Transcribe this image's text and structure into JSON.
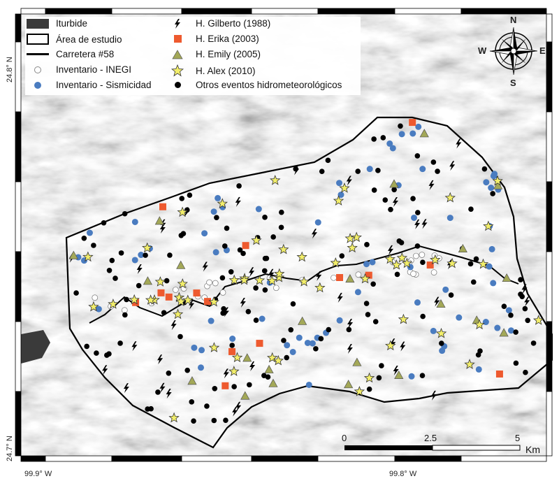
{
  "legend": {
    "items": [
      {
        "label": "Iturbide",
        "symbol": "dark-fill",
        "color": "#3a3a3a"
      },
      {
        "label": "Área de estudio",
        "symbol": "outline-box"
      },
      {
        "label": "Carretera #58",
        "symbol": "line"
      },
      {
        "label": "Inventario - INEGI",
        "symbol": "white-circle",
        "color": "#ffffff"
      },
      {
        "label": "Inventario - Sismicidad",
        "symbol": "blue-circle",
        "color": "#4a7cc0"
      },
      {
        "label": "H. Gilberto (1988)",
        "symbol": "lightning",
        "color": "#000000"
      },
      {
        "label": "H. Erika (2003)",
        "symbol": "square",
        "color": "#ee5a2f"
      },
      {
        "label": "H. Emily (2005)",
        "symbol": "triangle",
        "color": "#a3a857"
      },
      {
        "label": "H. Alex (2010)",
        "symbol": "star",
        "color": "#f2ee6a"
      },
      {
        "label": "Otros eventos hidrometeorológicos",
        "symbol": "black-circle",
        "color": "#000000"
      }
    ]
  },
  "compass": {
    "n": "N",
    "s": "S",
    "e": "E",
    "w": "W"
  },
  "coordinates": {
    "lat_top": "24.8° N",
    "lat_bottom": "24.7° N",
    "lon_left": "99.9° W",
    "lon_right": "99.8° W"
  },
  "scale_bar": {
    "ticks": [
      "0",
      "2.5",
      "5"
    ],
    "unit": "Km"
  }
}
